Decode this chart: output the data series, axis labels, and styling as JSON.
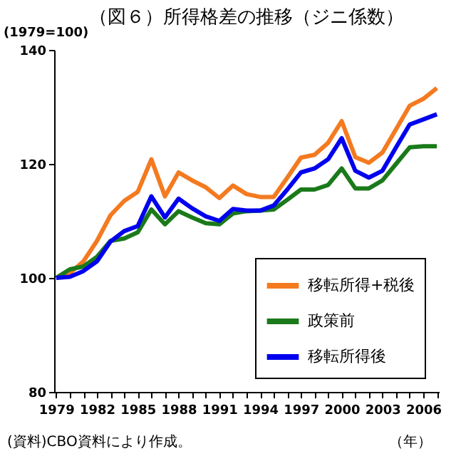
{
  "chart_data": {
    "type": "line",
    "title": "（図６）所得格差の推移（ジニ係数）",
    "ylabel": "(1979=100)",
    "categories": [
      "1979",
      null,
      null,
      "1982",
      null,
      null,
      "1985",
      null,
      null,
      "1988",
      null,
      null,
      "1991",
      null,
      null,
      "1994",
      null,
      null,
      "1997",
      null,
      null,
      "2000",
      null,
      null,
      "2003",
      null,
      null,
      "2006",
      null
    ],
    "series": [
      {
        "name": "移転所得+税後",
        "color": "#f47a20",
        "values": [
          100,
          100.8,
          102.9,
          106.5,
          111,
          113.5,
          115.1,
          120.8,
          114.3,
          118.5,
          117.1,
          115.9,
          114,
          116.2,
          114.7,
          114.2,
          114.2,
          117.6,
          121.1,
          121.6,
          123.7,
          127.5,
          121.2,
          120.2,
          122,
          126.1,
          130.2,
          131.4,
          133.3
        ]
      },
      {
        "name": "政策前",
        "color": "#1a7a1a",
        "values": [
          100,
          101.5,
          102,
          103.7,
          106.5,
          106.9,
          108,
          112,
          109.4,
          111.7,
          110.6,
          109.6,
          109.4,
          111.3,
          111.7,
          111.8,
          112,
          113.7,
          115.5,
          115.5,
          116.3,
          119.2,
          115.7,
          115.7,
          117.1,
          120,
          122.9,
          123.1,
          123.1
        ]
      },
      {
        "name": "移転所得後",
        "color": "#0000ee",
        "values": [
          100,
          100.2,
          101.2,
          102.9,
          106.4,
          108.2,
          109.1,
          114.3,
          110.6,
          113.9,
          112.2,
          110.8,
          110,
          112.1,
          111.8,
          111.8,
          112.7,
          115.5,
          118.5,
          119.2,
          120.8,
          124.5,
          118.8,
          117.6,
          118.8,
          122.9,
          126.9,
          127.8,
          128.7
        ]
      }
    ],
    "ylim": [
      80,
      140
    ],
    "yticks": [
      80,
      100,
      120,
      140
    ],
    "grid": false,
    "legend": "bottom right",
    "marker": "none",
    "line_style": "solid",
    "annotations": [
      "(資料)CBO資料により作成。",
      "（年）"
    ]
  }
}
